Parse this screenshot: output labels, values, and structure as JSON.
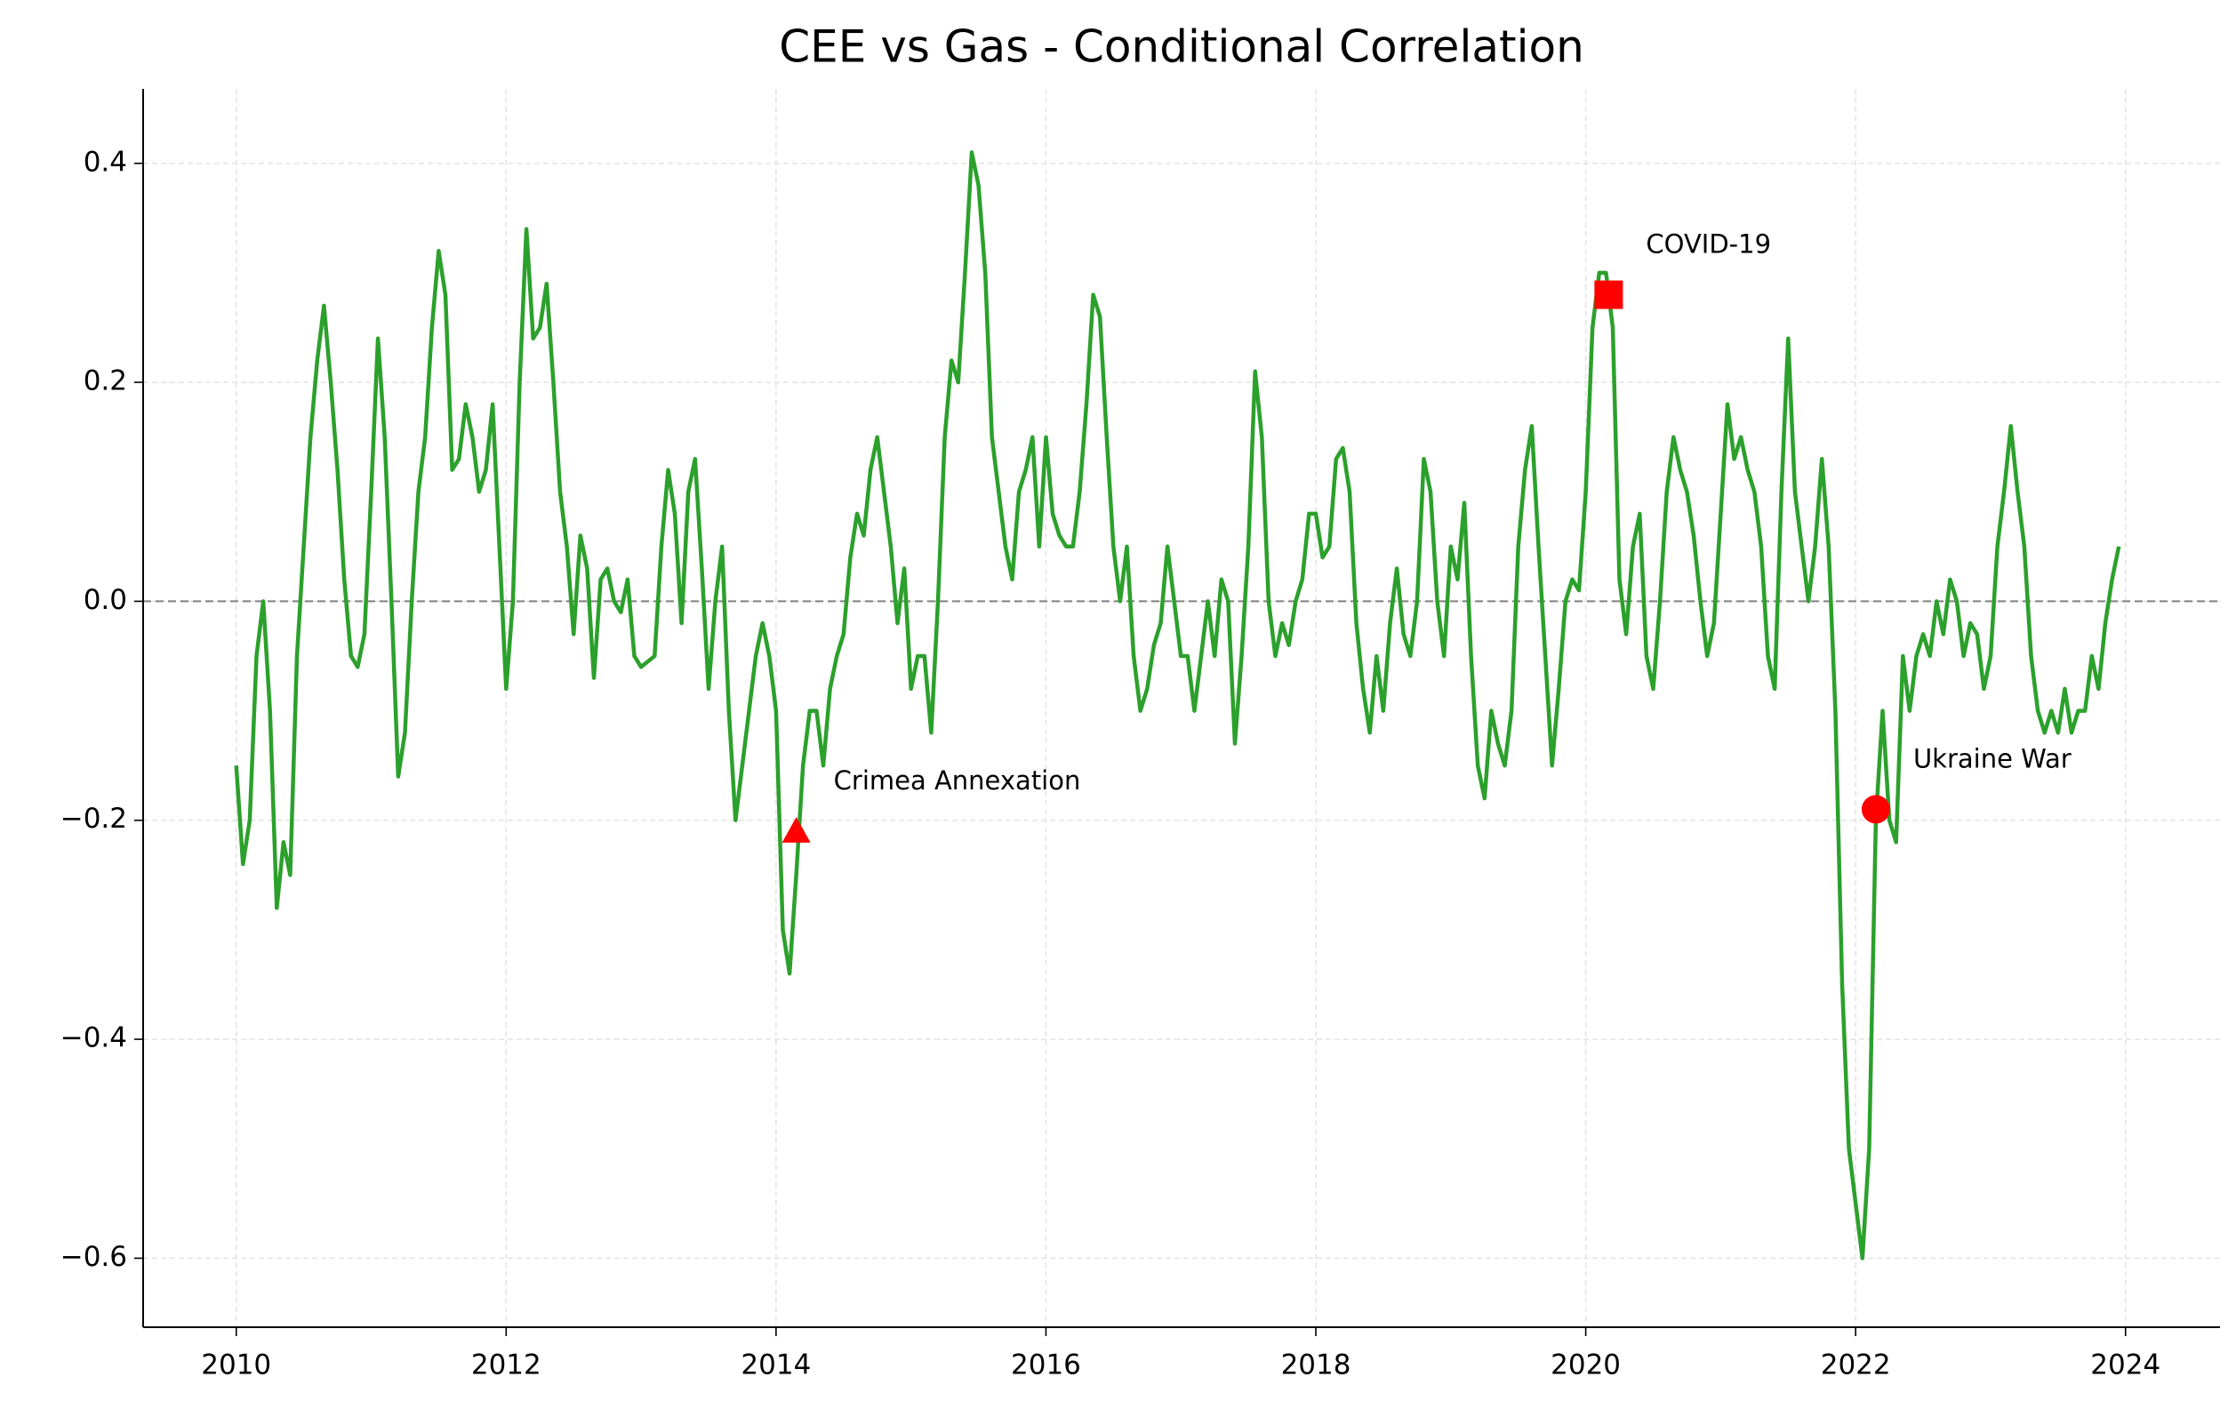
{
  "chart_data": {
    "type": "line",
    "title": "CEE vs Gas - Conditional Correlation",
    "color": "#2ca02c",
    "grid": true,
    "hline": 0,
    "xlim": [
      2009.31,
      2024.7
    ],
    "xticks": [
      2010,
      2012,
      2014,
      2016,
      2018,
      2020,
      2022,
      2024
    ],
    "ylim": [
      -0.663,
      0.468
    ],
    "yticks": [
      {
        "value": -0.6,
        "label": "−0.6"
      },
      {
        "value": -0.4,
        "label": "−0.4"
      },
      {
        "value": -0.2,
        "label": "−0.2"
      },
      {
        "value": 0,
        "label": "0.0"
      },
      {
        "value": 0.2,
        "label": "0.2"
      },
      {
        "value": 0.4,
        "label": "0.4"
      }
    ],
    "x": [
      2010.0,
      2010.05,
      2010.1,
      2010.15,
      2010.2,
      2010.25,
      2010.3,
      2010.35,
      2010.4,
      2010.45,
      2010.5,
      2010.55,
      2010.6,
      2010.65,
      2010.7,
      2010.75,
      2010.8,
      2010.85,
      2010.9,
      2010.95,
      2011.0,
      2011.05,
      2011.1,
      2011.15,
      2011.2,
      2011.25,
      2011.3,
      2011.35,
      2011.4,
      2011.45,
      2011.5,
      2011.55,
      2011.6,
      2011.65,
      2011.7,
      2011.75,
      2011.8,
      2011.85,
      2011.9,
      2011.95,
      2012.0,
      2012.05,
      2012.1,
      2012.15,
      2012.2,
      2012.25,
      2012.3,
      2012.35,
      2012.4,
      2012.45,
      2012.5,
      2012.55,
      2012.6,
      2012.65,
      2012.7,
      2012.75,
      2012.8,
      2012.85,
      2012.9,
      2012.95,
      2013.0,
      2013.1,
      2013.15,
      2013.2,
      2013.25,
      2013.3,
      2013.35,
      2013.4,
      2013.45,
      2013.5,
      2013.55,
      2013.6,
      2013.65,
      2013.7,
      2013.75,
      2013.8,
      2013.85,
      2013.9,
      2013.95,
      2014.0,
      2014.05,
      2014.1,
      2014.15,
      2014.2,
      2014.25,
      2014.3,
      2014.35,
      2014.4,
      2014.45,
      2014.5,
      2014.55,
      2014.6,
      2014.65,
      2014.7,
      2014.75,
      2014.8,
      2014.85,
      2014.9,
      2014.95,
      2015.0,
      2015.05,
      2015.1,
      2015.15,
      2015.2,
      2015.25,
      2015.3,
      2015.35,
      2015.4,
      2015.45,
      2015.5,
      2015.55,
      2015.6,
      2015.65,
      2015.7,
      2015.75,
      2015.8,
      2015.85,
      2015.9,
      2015.95,
      2016.0,
      2016.05,
      2016.1,
      2016.15,
      2016.2,
      2016.25,
      2016.3,
      2016.35,
      2016.4,
      2016.45,
      2016.5,
      2016.55,
      2016.6,
      2016.65,
      2016.7,
      2016.75,
      2016.8,
      2016.85,
      2016.9,
      2016.95,
      2017.0,
      2017.05,
      2017.1,
      2017.15,
      2017.2,
      2017.25,
      2017.3,
      2017.35,
      2017.4,
      2017.45,
      2017.5,
      2017.55,
      2017.6,
      2017.65,
      2017.7,
      2017.75,
      2017.8,
      2017.85,
      2017.9,
      2017.95,
      2018.0,
      2018.05,
      2018.1,
      2018.15,
      2018.2,
      2018.25,
      2018.3,
      2018.35,
      2018.4,
      2018.45,
      2018.5,
      2018.55,
      2018.6,
      2018.65,
      2018.7,
      2018.75,
      2018.8,
      2018.85,
      2018.9,
      2018.95,
      2019.0,
      2019.05,
      2019.1,
      2019.15,
      2019.2,
      2019.25,
      2019.3,
      2019.35,
      2019.4,
      2019.45,
      2019.5,
      2019.55,
      2019.6,
      2019.65,
      2019.7,
      2019.75,
      2019.8,
      2019.85,
      2019.9,
      2019.95,
      2020.0,
      2020.05,
      2020.1,
      2020.15,
      2020.2,
      2020.25,
      2020.3,
      2020.35,
      2020.4,
      2020.45,
      2020.5,
      2020.55,
      2020.6,
      2020.65,
      2020.7,
      2020.75,
      2020.8,
      2020.85,
      2020.9,
      2020.95,
      2021.0,
      2021.05,
      2021.1,
      2021.15,
      2021.2,
      2021.25,
      2021.3,
      2021.35,
      2021.4,
      2021.45,
      2021.5,
      2021.55,
      2021.6,
      2021.65,
      2021.7,
      2021.75,
      2021.8,
      2021.85,
      2021.9,
      2021.95,
      2022.0,
      2022.05,
      2022.1,
      2022.15,
      2022.2,
      2022.25,
      2022.3,
      2022.35,
      2022.4,
      2022.45,
      2022.5,
      2022.55,
      2022.6,
      2022.65,
      2022.7,
      2022.75,
      2022.8,
      2022.85,
      2022.9,
      2022.95,
      2023.0,
      2023.05,
      2023.1,
      2023.15,
      2023.2,
      2023.25,
      2023.3,
      2023.35,
      2023.4,
      2023.45,
      2023.5,
      2023.55,
      2023.6,
      2023.65,
      2023.7,
      2023.75,
      2023.8,
      2023.85,
      2023.9,
      2023.95
    ],
    "values": [
      -0.15,
      -0.24,
      -0.2,
      -0.05,
      0.0,
      -0.1,
      -0.28,
      -0.22,
      -0.25,
      -0.05,
      0.05,
      0.15,
      0.22,
      0.27,
      0.2,
      0.12,
      0.02,
      -0.05,
      -0.06,
      -0.03,
      0.1,
      0.24,
      0.15,
      0.0,
      -0.16,
      -0.12,
      0.0,
      0.1,
      0.15,
      0.25,
      0.32,
      0.28,
      0.12,
      0.13,
      0.18,
      0.15,
      0.1,
      0.12,
      0.18,
      0.05,
      -0.08,
      0.0,
      0.2,
      0.34,
      0.24,
      0.25,
      0.29,
      0.2,
      0.1,
      0.05,
      -0.03,
      0.06,
      0.03,
      -0.07,
      0.02,
      0.03,
      0.0,
      -0.01,
      0.02,
      -0.05,
      -0.06,
      -0.05,
      0.05,
      0.12,
      0.08,
      -0.02,
      0.1,
      0.13,
      0.03,
      -0.08,
      0.0,
      0.05,
      -0.1,
      -0.2,
      -0.15,
      -0.1,
      -0.05,
      -0.02,
      -0.05,
      -0.1,
      -0.3,
      -0.34,
      -0.25,
      -0.15,
      -0.1,
      -0.1,
      -0.15,
      -0.08,
      -0.05,
      -0.03,
      0.04,
      0.08,
      0.06,
      0.12,
      0.15,
      0.1,
      0.05,
      -0.02,
      0.03,
      -0.08,
      -0.05,
      -0.05,
      -0.12,
      0.0,
      0.15,
      0.22,
      0.2,
      0.3,
      0.41,
      0.38,
      0.3,
      0.15,
      0.1,
      0.05,
      0.02,
      0.1,
      0.12,
      0.15,
      0.05,
      0.15,
      0.08,
      0.06,
      0.05,
      0.05,
      0.1,
      0.18,
      0.28,
      0.26,
      0.15,
      0.05,
      0.0,
      0.05,
      -0.05,
      -0.1,
      -0.08,
      -0.04,
      -0.02,
      0.05,
      0.0,
      -0.05,
      -0.05,
      -0.1,
      -0.05,
      0.0,
      -0.05,
      0.02,
      0.0,
      -0.13,
      -0.05,
      0.05,
      0.21,
      0.15,
      0.0,
      -0.05,
      -0.02,
      -0.04,
      0.0,
      0.02,
      0.08,
      0.08,
      0.04,
      0.05,
      0.13,
      0.14,
      0.1,
      -0.02,
      -0.08,
      -0.12,
      -0.05,
      -0.1,
      -0.02,
      0.03,
      -0.03,
      -0.05,
      0.0,
      0.13,
      0.1,
      0.0,
      -0.05,
      0.05,
      0.02,
      0.09,
      -0.05,
      -0.15,
      -0.18,
      -0.1,
      -0.13,
      -0.15,
      -0.1,
      0.05,
      0.12,
      0.16,
      0.05,
      -0.05,
      -0.15,
      -0.08,
      0.0,
      0.02,
      0.01,
      0.1,
      0.25,
      0.3,
      0.3,
      0.25,
      0.02,
      -0.03,
      0.05,
      0.08,
      -0.05,
      -0.08,
      0.0,
      0.1,
      0.15,
      0.12,
      0.1,
      0.06,
      0.0,
      -0.05,
      -0.02,
      0.08,
      0.18,
      0.13,
      0.15,
      0.12,
      0.1,
      0.05,
      -0.05,
      -0.08,
      0.1,
      0.24,
      0.1,
      0.05,
      0.0,
      0.05,
      0.13,
      0.05,
      -0.1,
      -0.35,
      -0.5,
      -0.55,
      -0.6,
      -0.5,
      -0.2,
      -0.1,
      -0.2,
      -0.22,
      -0.05,
      -0.1,
      -0.05,
      -0.03,
      -0.05,
      0.0,
      -0.03,
      0.02,
      0.0,
      -0.05,
      -0.02,
      -0.03,
      -0.08,
      -0.05,
      0.05,
      0.1,
      0.16,
      0.1,
      0.05,
      -0.05,
      -0.1,
      -0.12,
      -0.1,
      -0.12,
      -0.08,
      -0.12,
      -0.1,
      -0.1,
      -0.05,
      -0.08,
      -0.02,
      0.02,
      0.05
    ],
    "events": [
      {
        "label": "Crimea Annexation",
        "x": 2014.15,
        "y": -0.21,
        "marker": "triangle",
        "color": "#ff0000"
      },
      {
        "label": "COVID-19",
        "x": 2020.17,
        "y": 0.28,
        "marker": "square",
        "color": "#ff0000"
      },
      {
        "label": "Ukraine War",
        "x": 2022.15,
        "y": -0.19,
        "marker": "circle",
        "color": "#ff0000"
      }
    ]
  }
}
